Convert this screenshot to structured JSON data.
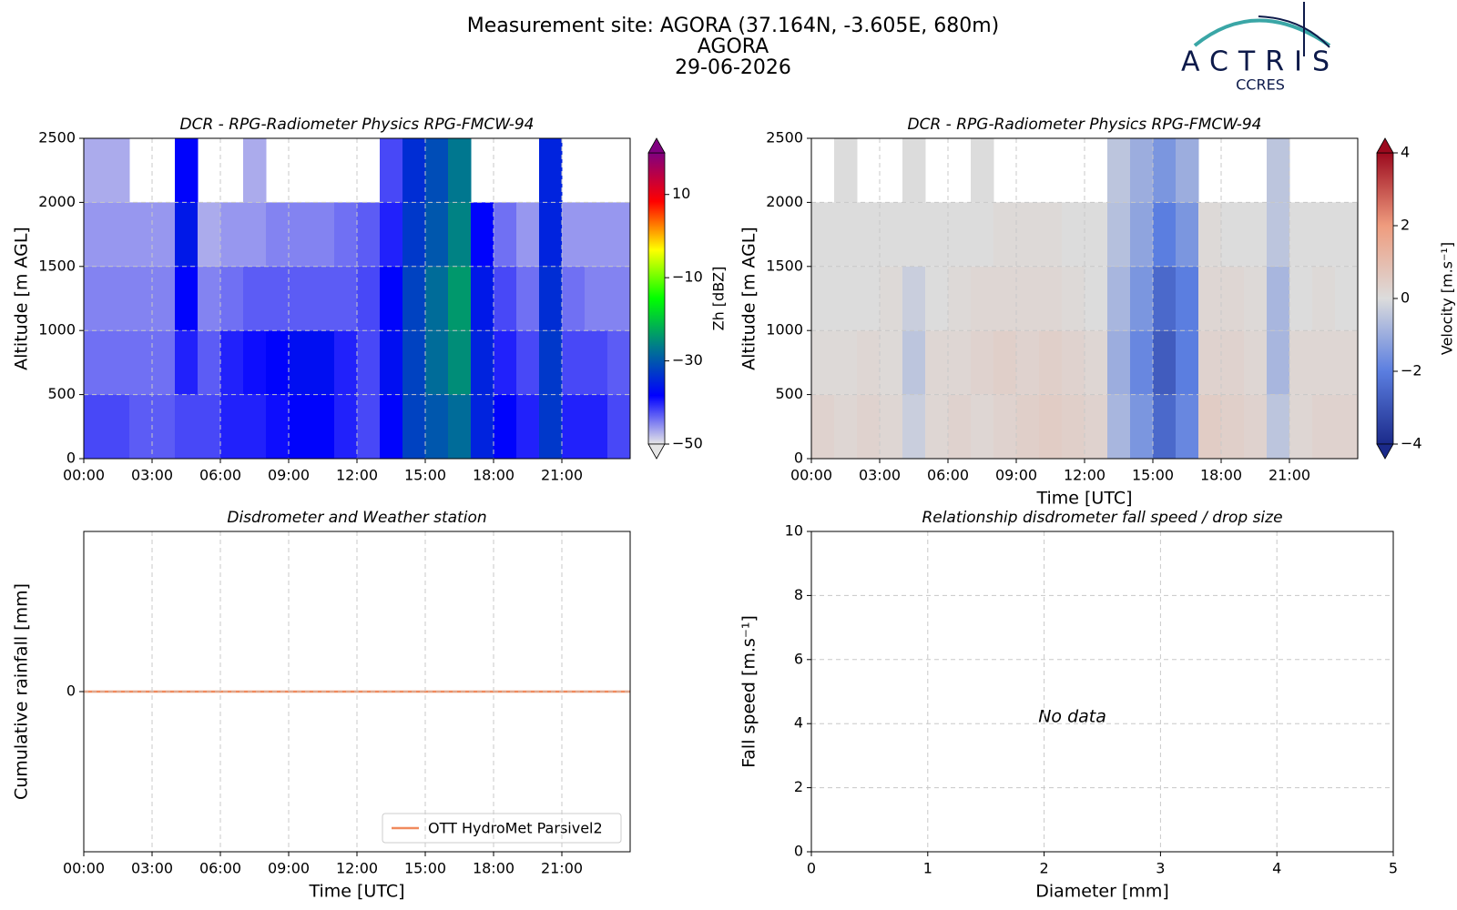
{
  "header": {
    "title_lines": [
      "Measurement site: AGORA (37.164N, -3.605E, 680m)",
      "AGORA",
      "29-06-2026"
    ],
    "logo": {
      "name": "ACTRIS",
      "subname": "CCRES"
    }
  },
  "chart_data": [
    {
      "type": "heatmap",
      "title": "DCR - RPG-Radiometer Physics RPG-FMCW-94",
      "ylabel": "Altitude [m AGL]",
      "xbins": [
        0,
        1,
        2,
        3,
        4,
        5,
        6,
        7,
        8,
        9,
        10,
        11,
        12,
        13,
        14,
        15,
        16,
        17,
        18,
        19,
        20,
        21,
        22,
        23,
        24
      ],
      "ybins": [
        0,
        500,
        1000,
        1500,
        2000,
        2500
      ],
      "values": [
        [
          -42,
          -42,
          -43,
          -43,
          -42,
          -42,
          -40,
          -40,
          -39,
          -38,
          -38,
          -40,
          -42,
          -38,
          -32,
          -30,
          -28,
          -35,
          -38,
          -40,
          -33,
          -40,
          -40,
          -42
        ],
        [
          -44,
          -44,
          -44,
          -44,
          -40,
          -43,
          -40,
          -39,
          -38,
          -37,
          -37,
          -40,
          -42,
          -37,
          -32,
          -28,
          -25,
          -35,
          -40,
          -42,
          -33,
          -42,
          -42,
          -43
        ],
        [
          -45,
          -45,
          -45,
          -45,
          -38,
          -45,
          -44,
          -43,
          -43,
          -43,
          -43,
          -43,
          -42,
          -38,
          -32,
          -28,
          -24,
          -36,
          -42,
          -44,
          -34,
          -44,
          -45,
          -45
        ],
        [
          -46,
          -46,
          -46,
          -46,
          -36,
          -47,
          -46,
          -46,
          -45,
          -45,
          -45,
          -44,
          -43,
          -40,
          -33,
          -30,
          -26,
          -38,
          -44,
          -46,
          -35,
          -46,
          -46,
          -46
        ],
        [
          -47,
          -47,
          null,
          null,
          -38,
          null,
          null,
          -47,
          null,
          null,
          null,
          null,
          null,
          -42,
          -34,
          -31,
          -27,
          null,
          null,
          null,
          -35,
          null,
          null,
          null
        ]
      ],
      "xlim": [
        0,
        24
      ],
      "ylim": [
        0,
        2500
      ],
      "xticks": [
        {
          "value": 0,
          "label": "00:00"
        },
        {
          "value": 3,
          "label": "03:00"
        },
        {
          "value": 6,
          "label": "06:00"
        },
        {
          "value": 9,
          "label": "09:00"
        },
        {
          "value": 12,
          "label": "12:00"
        },
        {
          "value": 15,
          "label": "15:00"
        },
        {
          "value": 18,
          "label": "18:00"
        },
        {
          "value": 21,
          "label": "21:00"
        }
      ],
      "yticks": [
        0,
        500,
        1000,
        1500,
        2000,
        2500
      ],
      "grid": true,
      "colormap": [
        "#e6e6e6",
        "#0000ff",
        "#007a8c",
        "#00ff00",
        "#ffff00",
        "#ff0000",
        "#800080"
      ],
      "clim": [
        -50,
        20
      ],
      "clabel": "Zh [dBZ]",
      "cticks": [
        {
          "value": -50,
          "label": "−50"
        },
        {
          "value": -30,
          "label": "−30"
        },
        {
          "value": -10,
          "label": "−10"
        },
        10
      ]
    },
    {
      "type": "heatmap",
      "title": "DCR - RPG-Radiometer Physics RPG-FMCW-94",
      "ylabel": "Altitude [m AGL]",
      "xlabel": "Time [UTC]",
      "xbins": [
        0,
        1,
        2,
        3,
        4,
        5,
        6,
        7,
        8,
        9,
        10,
        11,
        12,
        13,
        14,
        15,
        16,
        17,
        18,
        19,
        20,
        21,
        22,
        23,
        24
      ],
      "ybins": [
        0,
        500,
        1000,
        1500,
        2000,
        2500
      ],
      "values": [
        [
          0.3,
          0.2,
          0.3,
          0.2,
          -0.3,
          0.2,
          0.3,
          0.2,
          0.3,
          0.4,
          0.5,
          0.4,
          0.3,
          -0.8,
          -1.5,
          -2.5,
          -1.8,
          0.5,
          0.4,
          0.3,
          -0.5,
          0.2,
          0.3,
          0.3
        ],
        [
          0.1,
          0.1,
          0.2,
          0.1,
          -0.5,
          0.2,
          0.2,
          0.3,
          0.4,
          0.3,
          0.4,
          0.3,
          0.2,
          -1,
          -1.8,
          -2.8,
          -2,
          0.3,
          0.3,
          0.2,
          -0.8,
          0.2,
          0.2,
          0.2
        ],
        [
          0,
          0,
          0,
          0.1,
          -0.3,
          0,
          0.1,
          0.2,
          0.2,
          0.2,
          0.2,
          0.1,
          0,
          -0.8,
          -1.5,
          -2.5,
          -2,
          0.2,
          0.2,
          0.1,
          -0.8,
          0,
          0.1,
          0
        ],
        [
          0,
          0,
          0,
          0,
          0,
          0,
          0,
          0,
          0.1,
          0.1,
          0.1,
          0,
          0,
          -0.6,
          -1.2,
          -2,
          -1.5,
          0.1,
          0,
          0,
          -0.5,
          0,
          0,
          0
        ],
        [
          null,
          0,
          null,
          null,
          0,
          null,
          null,
          0,
          null,
          null,
          null,
          null,
          null,
          -0.5,
          -1,
          -1.5,
          -1,
          null,
          null,
          null,
          -0.5,
          null,
          null,
          null
        ]
      ],
      "xlim": [
        0,
        24
      ],
      "ylim": [
        0,
        2500
      ],
      "xticks": [
        {
          "value": 0,
          "label": "00:00"
        },
        {
          "value": 3,
          "label": "03:00"
        },
        {
          "value": 6,
          "label": "06:00"
        },
        {
          "value": 9,
          "label": "09:00"
        },
        {
          "value": 12,
          "label": "12:00"
        },
        {
          "value": 15,
          "label": "15:00"
        },
        {
          "value": 18,
          "label": "18:00"
        },
        {
          "value": 21,
          "label": "21:00"
        }
      ],
      "yticks": [
        0,
        500,
        1000,
        1500,
        2000,
        2500
      ],
      "grid": true,
      "colormap": [
        "#1b2a8a",
        "#5b7ee0",
        "#dcdcdc",
        "#ef9c7e",
        "#9c0a1e"
      ],
      "clim": [
        -4,
        4
      ],
      "clabel": "Velocity [m.s⁻¹]",
      "cticks": [
        {
          "value": -4,
          "label": "−4"
        },
        {
          "value": -2,
          "label": "−2"
        },
        0,
        2,
        4
      ]
    },
    {
      "type": "line",
      "title": "Disdrometer and Weather station",
      "ylabel": "Cumulative rainfall [mm]",
      "xlabel": "Time [UTC]",
      "x": [
        0,
        24
      ],
      "series": [
        {
          "name": "OTT HydroMet Parsivel2",
          "color": "#f08a5d",
          "values": [
            0,
            0
          ]
        }
      ],
      "xlim": [
        0,
        24
      ],
      "ylim": [
        -1,
        1
      ],
      "xticks": [
        {
          "value": 0,
          "label": "00:00"
        },
        {
          "value": 3,
          "label": "03:00"
        },
        {
          "value": 6,
          "label": "06:00"
        },
        {
          "value": 9,
          "label": "09:00"
        },
        {
          "value": 12,
          "label": "12:00"
        },
        {
          "value": 15,
          "label": "15:00"
        },
        {
          "value": 18,
          "label": "18:00"
        },
        {
          "value": 21,
          "label": "21:00"
        }
      ],
      "yticks": [
        0
      ],
      "grid": true,
      "legend": "lower-right"
    },
    {
      "type": "scatter",
      "title": "Relationship disdrometer fall speed / drop size",
      "ylabel": "Fall speed [m.s⁻¹]",
      "xlabel": "Diameter [mm]",
      "x": [],
      "values": [],
      "xlim": [
        0,
        5
      ],
      "ylim": [
        0,
        10
      ],
      "xticks": [
        0,
        1,
        2,
        3,
        4,
        5
      ],
      "yticks": [
        0,
        2,
        4,
        6,
        8,
        10
      ],
      "grid": true,
      "annotation": "No data"
    }
  ]
}
